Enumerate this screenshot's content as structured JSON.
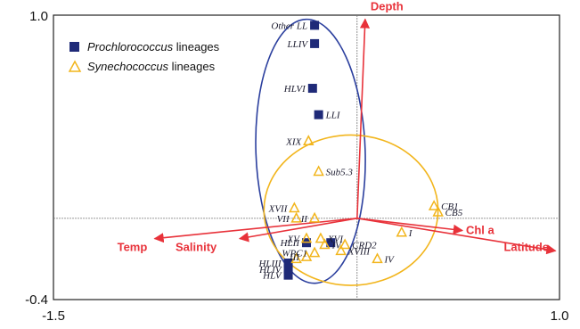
{
  "chart_data": {
    "type": "scatter",
    "xlim": [
      -1.5,
      1.0
    ],
    "ylim": [
      -0.4,
      1.0
    ],
    "x_tick_labels": [
      "-1.5",
      "1.0"
    ],
    "y_tick_labels": [
      "1.0",
      "-0.4"
    ],
    "grid": false,
    "legend": {
      "placement": "top-left",
      "items": [
        {
          "marker": "square",
          "italic": "Prochlorococcus",
          "rest": " lineages",
          "color": "#1f2a78"
        },
        {
          "marker": "triangle",
          "italic": "Synechococcus",
          "rest": " lineages",
          "color": "#f2b51c"
        }
      ]
    },
    "vectors": [
      {
        "label": "Depth",
        "x": 0.04,
        "y": 0.98
      },
      {
        "label": "Chl a",
        "x": 0.52,
        "y": -0.06
      },
      {
        "label": "Latitude",
        "x": 0.98,
        "y": -0.16
      },
      {
        "label": "Temp",
        "x": -1.0,
        "y": -0.1
      },
      {
        "label": "Salinity",
        "x": -0.58,
        "y": -0.1
      }
    ],
    "series": [
      {
        "name": "Prochlorococcus lineages",
        "marker": "square",
        "color": "#1f2a78",
        "points": [
          {
            "label": "Other LL",
            "x": -0.21,
            "y": 0.95
          },
          {
            "label": "LLIV",
            "x": -0.21,
            "y": 0.86
          },
          {
            "label": "HLVI",
            "x": -0.22,
            "y": 0.64
          },
          {
            "label": "LLI",
            "x": -0.19,
            "y": 0.51
          },
          {
            "label": "HLII",
            "x": -0.25,
            "y": -0.12
          },
          {
            "label": "",
            "x": -0.13,
            "y": -0.12
          },
          {
            "label": "HLIII",
            "x": -0.34,
            "y": -0.22
          },
          {
            "label": "HLIV",
            "x": -0.34,
            "y": -0.25
          },
          {
            "label": "HLV",
            "x": -0.34,
            "y": -0.28
          }
        ]
      },
      {
        "name": "Synechococcus lineages",
        "marker": "triangle",
        "color": "#f2b51c",
        "points": [
          {
            "label": "XIX",
            "x": -0.24,
            "y": 0.38
          },
          {
            "label": "Sub5.3",
            "x": -0.19,
            "y": 0.23
          },
          {
            "label": "XVII",
            "x": -0.31,
            "y": 0.05
          },
          {
            "label": "II",
            "x": -0.21,
            "y": 0.0
          },
          {
            "label": "VII",
            "x": -0.3,
            "y": 0.0
          },
          {
            "label": "XV",
            "x": -0.25,
            "y": -0.1
          },
          {
            "label": "XVI",
            "x": -0.18,
            "y": -0.1
          },
          {
            "label": "IV",
            "x": -0.16,
            "y": -0.13
          },
          {
            "label": "CB1",
            "x": 0.38,
            "y": 0.06
          },
          {
            "label": "CB5",
            "x": 0.4,
            "y": 0.03
          },
          {
            "label": "I",
            "x": 0.22,
            "y": -0.07
          },
          {
            "label": "IV",
            "x": 0.1,
            "y": -0.2
          },
          {
            "label": "III",
            "x": -0.25,
            "y": -0.19
          },
          {
            "label": "WPC1",
            "x": -0.21,
            "y": -0.17
          },
          {
            "label": "CRD2",
            "x": -0.06,
            "y": -0.13
          },
          {
            "label": "XVIII",
            "x": -0.08,
            "y": -0.16
          },
          {
            "label": "",
            "x": -0.3,
            "y": -0.2
          }
        ]
      }
    ],
    "ellipses": [
      {
        "name": "Prochlorococcus",
        "cx": -0.23,
        "cy": 0.33,
        "rx": 0.27,
        "ry": 0.65,
        "angle": -2,
        "color": "#2b3f9e"
      },
      {
        "name": "Synechococcus",
        "cx": -0.03,
        "cy": 0.04,
        "rx": 0.43,
        "ry": 0.37,
        "angle": 0,
        "color": "#f2b51c"
      }
    ]
  }
}
